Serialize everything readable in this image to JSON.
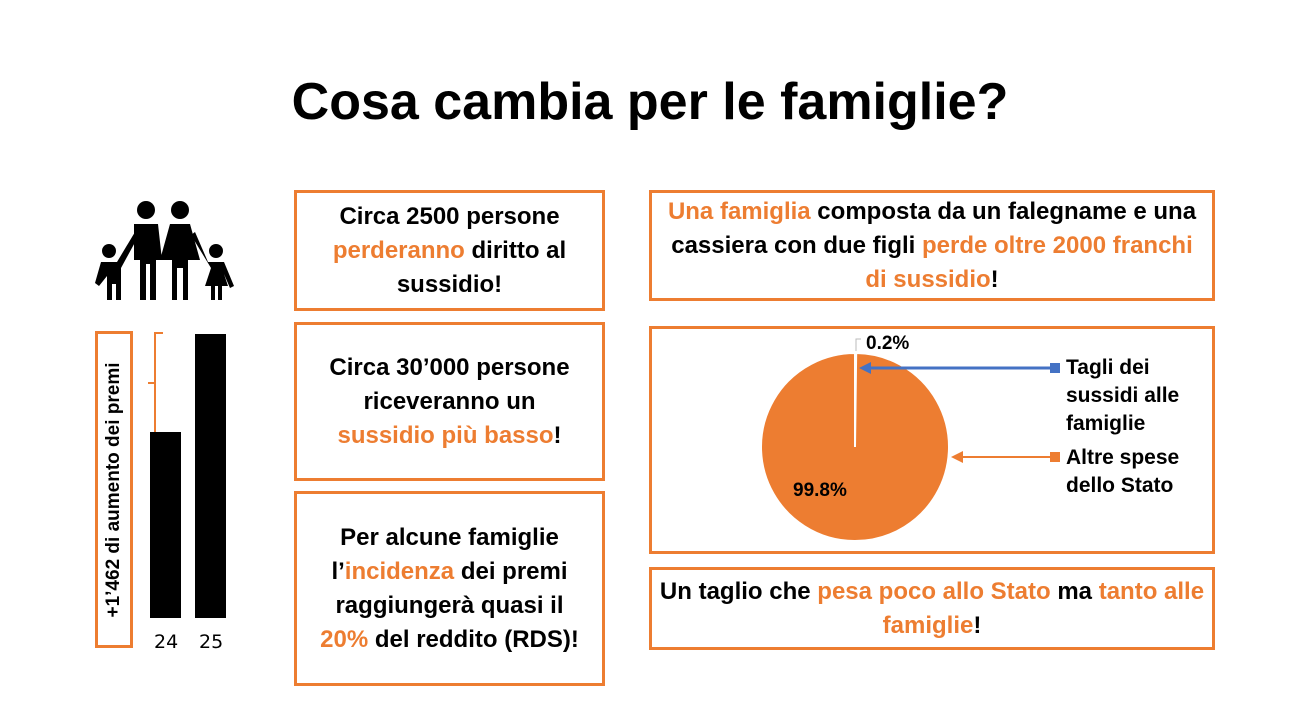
{
  "title": "Cosa cambia per le famiglie?",
  "colors": {
    "accent": "#ED7D31",
    "blue": "#4472C4"
  },
  "boxes": {
    "b1": [
      "Circa 2500 persone ",
      "perderanno",
      " diritto al sussidio!"
    ],
    "b2": [
      "Circa 30’000 persone riceveranno un ",
      "sussidio più basso",
      "!"
    ],
    "b3": [
      "Per alcune famiglie l’",
      "incidenza",
      " dei premi raggiungerà quasi il ",
      "20%",
      " del reddito (RDS)!"
    ],
    "r1": [
      "Una famiglia",
      " composta da un falegname e una cassiera con due figli ",
      "perde oltre 2000 franchi di sussidio",
      "!"
    ],
    "r3": [
      "Un taglio che ",
      "pesa poco allo Stato",
      " ma ",
      "tanto alle famiglie",
      "!"
    ]
  },
  "bar_label": "+1’462 di aumento dei premi",
  "chart_data": [
    {
      "type": "bar",
      "categories": [
        "24",
        "25"
      ],
      "values": [
        60,
        92
      ],
      "annotation": "+1’462 di aumento dei premi"
    },
    {
      "type": "pie",
      "labels": [
        "Tagli dei sussidi alle famiglie",
        "Altre spese dello Stato"
      ],
      "values": [
        0.2,
        99.8
      ],
      "data_labels": [
        "0.2%",
        "99.8%"
      ],
      "colors": [
        "#4472C4",
        "#ED7D31"
      ]
    }
  ]
}
